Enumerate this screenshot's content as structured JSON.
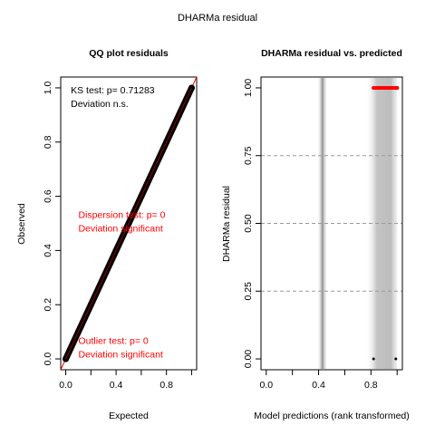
{
  "figure": {
    "title": "DHARMa residual"
  },
  "chart_data": [
    {
      "type": "scatter",
      "title": "QQ plot residuals",
      "xlabel": "Expected",
      "ylabel": "Observed",
      "xlim": [
        0,
        1
      ],
      "ylim": [
        0,
        1
      ],
      "x_ticks": [
        "0.0",
        "0.4",
        "0.8"
      ],
      "y_ticks": [
        "0.0",
        "0.2",
        "0.4",
        "0.6",
        "0.8",
        "1.0"
      ],
      "series": [
        {
          "points": [
            [
              0.0,
              0.0
            ],
            [
              0.1,
              0.1
            ],
            [
              0.2,
              0.2
            ],
            [
              0.3,
              0.3
            ],
            [
              0.4,
              0.4
            ],
            [
              0.5,
              0.5
            ],
            [
              0.6,
              0.6
            ],
            [
              0.7,
              0.7
            ],
            [
              0.8,
              0.8
            ],
            [
              0.9,
              0.9
            ],
            [
              1.0,
              1.0
            ]
          ],
          "color": "#000000"
        }
      ],
      "reference_line": {
        "from": [
          0,
          0
        ],
        "to": [
          1,
          1
        ],
        "color": "#ff0000"
      },
      "annotations": [
        {
          "lines": [
            "KS test: p= 0.71283",
            "Deviation  n.s."
          ],
          "color": "#000000",
          "at": [
            0.04,
            0.98
          ]
        },
        {
          "lines": [
            "Dispersion test: p= 0",
            "Deviation  significant"
          ],
          "color": "#ff0000",
          "at": [
            0.1,
            0.52
          ]
        },
        {
          "lines": [
            "Outlier test: p= 0",
            "Deviation  significant"
          ],
          "color": "#ff0000",
          "at": [
            0.1,
            0.055
          ]
        }
      ]
    },
    {
      "type": "scatter",
      "title": "DHARMa residual vs. predicted",
      "xlabel": "Model predictions (rank transformed)",
      "ylabel": "DHARMa residual",
      "xlim": [
        0,
        1
      ],
      "ylim": [
        0,
        1
      ],
      "x_ticks": [
        "0.0",
        "0.4",
        "0.8"
      ],
      "y_ticks": [
        "0.00",
        "0.25",
        "0.50",
        "0.75",
        "1.00"
      ],
      "grid_y": [
        0.25,
        0.5,
        0.75
      ],
      "series": [
        {
          "points": [
            [
              0.82,
              1.0
            ],
            [
              0.84,
              1.0
            ],
            [
              0.86,
              1.0
            ],
            [
              0.88,
              1.0
            ],
            [
              0.9,
              1.0
            ],
            [
              0.92,
              1.0
            ],
            [
              0.94,
              1.0
            ],
            [
              0.96,
              1.0
            ],
            [
              0.98,
              1.0
            ],
            [
              1.0,
              1.0
            ]
          ],
          "color": "#ff0000"
        },
        {
          "points": [
            [
              0.82,
              0.0
            ],
            [
              0.99,
              0.0
            ]
          ],
          "color": "#000000"
        }
      ],
      "density_bands": [
        {
          "center": 0.43,
          "halfwidth": 0.04,
          "color": "#999999"
        },
        {
          "center": 0.88,
          "halfwidth": 0.12,
          "color": "#b0b0b0"
        }
      ]
    }
  ]
}
